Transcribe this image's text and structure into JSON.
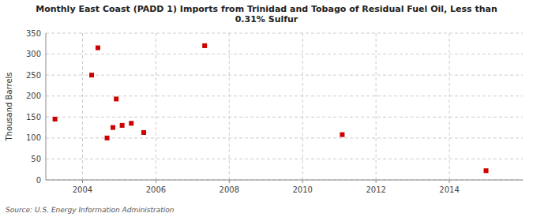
{
  "chart_data": {
    "type": "scatter",
    "title": "Monthly East Coast (PADD 1) Imports from Trinidad and Tobago of Residual Fuel Oil, Less than\n0.31% Sulfur",
    "y_label": "Thousand Barrels",
    "source": "Source: U.S. Energy Information Administration",
    "x": [
      2003.25,
      2004.25,
      2004.42,
      2004.67,
      2004.83,
      2004.92,
      2005.08,
      2005.33,
      2005.67,
      2007.33,
      2011.08,
      2015.0
    ],
    "values": [
      145,
      250,
      315,
      100,
      125,
      193,
      130,
      135,
      113,
      320,
      108,
      22
    ],
    "color": "#cc0000",
    "marker": "square",
    "xlim": [
      2003,
      2016
    ],
    "ylim": [
      0,
      350
    ],
    "xticks": [
      2004,
      2006,
      2008,
      2010,
      2012,
      2014
    ],
    "yticks": [
      0,
      50,
      100,
      150,
      200,
      250,
      300,
      350
    ],
    "grid": true
  }
}
